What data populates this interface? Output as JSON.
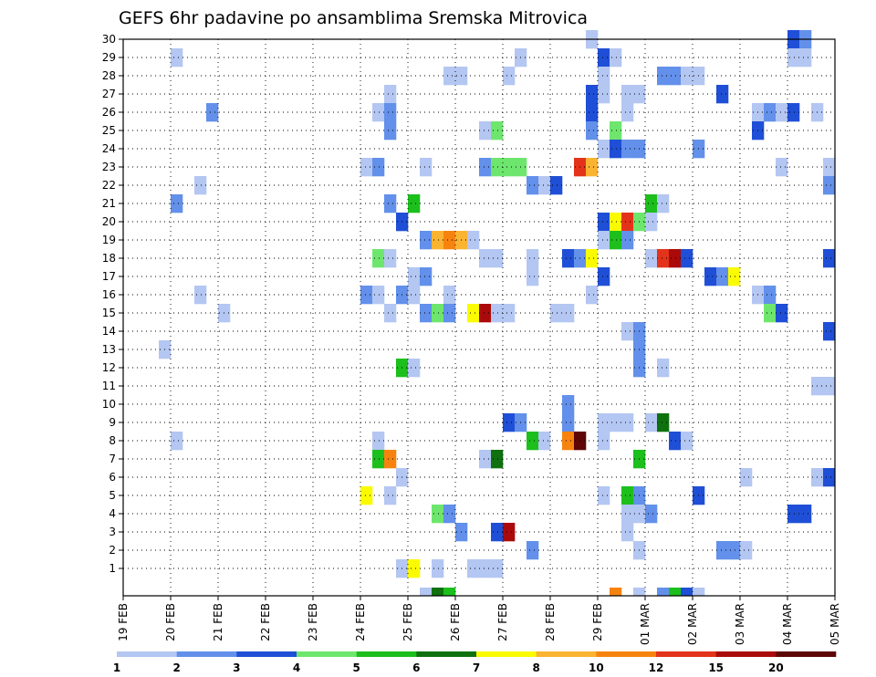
{
  "chart_data": {
    "type": "heatmap",
    "title": "GEFS 6hr padavine po ansamblima Sremska Mitrovica",
    "xlabel": "",
    "ylabel": "",
    "x_tick_labels": [
      "19 FEB",
      "20 FEB",
      "21 FEB",
      "22 FEB",
      "23 FEB",
      "24 FEB",
      "25 FEB",
      "26 FEB",
      "27 FEB",
      "28 FEB",
      "29 FEB",
      "01 MAR",
      "02 MAR",
      "03 MAR",
      "04 MAR",
      "05 MAR"
    ],
    "y_tick_labels": [
      "1",
      "2",
      "3",
      "4",
      "5",
      "6",
      "7",
      "8",
      "9",
      "10",
      "11",
      "12",
      "13",
      "14",
      "15",
      "16",
      "17",
      "18",
      "19",
      "20",
      "21",
      "22",
      "23",
      "24",
      "25",
      "26",
      "27",
      "28",
      "29",
      "30"
    ],
    "x_slots": 60,
    "ylim": [
      0,
      30
    ],
    "grid": true,
    "colorbar": {
      "labels": [
        "1",
        "2",
        "3",
        "4",
        "5",
        "6",
        "7",
        "8",
        "10",
        "12",
        "15",
        "20"
      ],
      "colors": [
        "#b4c6f2",
        "#6290ea",
        "#1f4fd6",
        "#6ee66e",
        "#1cbf1c",
        "#0e710e",
        "#fafa00",
        "#fab432",
        "#f7830f",
        "#e3331a",
        "#aa0a0a",
        "#5e0606"
      ]
    },
    "cells": [
      [
        39,
        30,
        0
      ],
      [
        56,
        30,
        2
      ],
      [
        57,
        30,
        1
      ],
      [
        56,
        29,
        0
      ],
      [
        57,
        29,
        0
      ],
      [
        4,
        29,
        0
      ],
      [
        33,
        29,
        0
      ],
      [
        40,
        29,
        2
      ],
      [
        41,
        29,
        0
      ],
      [
        27,
        28,
        0
      ],
      [
        28,
        28,
        0
      ],
      [
        32,
        28,
        0
      ],
      [
        40,
        28,
        0
      ],
      [
        45,
        28,
        1
      ],
      [
        46,
        28,
        1
      ],
      [
        47,
        28,
        0
      ],
      [
        48,
        28,
        0
      ],
      [
        22,
        27,
        0
      ],
      [
        39,
        27,
        2
      ],
      [
        40,
        27,
        0
      ],
      [
        42,
        27,
        0
      ],
      [
        43,
        27,
        0
      ],
      [
        50,
        27,
        2
      ],
      [
        7,
        26,
        1
      ],
      [
        21,
        26,
        0
      ],
      [
        22,
        26,
        1
      ],
      [
        39,
        26,
        2
      ],
      [
        42,
        26,
        0
      ],
      [
        53,
        26,
        0
      ],
      [
        54,
        26,
        1
      ],
      [
        55,
        26,
        0
      ],
      [
        56,
        26,
        2
      ],
      [
        58,
        26,
        0
      ],
      [
        22,
        25,
        1
      ],
      [
        30,
        25,
        0
      ],
      [
        31,
        25,
        3
      ],
      [
        39,
        25,
        1
      ],
      [
        41,
        25,
        3
      ],
      [
        53,
        25,
        2
      ],
      [
        40,
        24,
        0
      ],
      [
        41,
        24,
        2
      ],
      [
        42,
        24,
        1
      ],
      [
        43,
        24,
        1
      ],
      [
        48,
        24,
        1
      ],
      [
        20,
        23,
        0
      ],
      [
        21,
        23,
        1
      ],
      [
        25,
        23,
        0
      ],
      [
        30,
        23,
        1
      ],
      [
        31,
        23,
        3
      ],
      [
        32,
        23,
        3
      ],
      [
        33,
        23,
        3
      ],
      [
        38,
        23,
        9
      ],
      [
        39,
        23,
        7
      ],
      [
        55,
        23,
        0
      ],
      [
        59,
        23,
        0
      ],
      [
        6,
        22,
        0
      ],
      [
        34,
        22,
        1
      ],
      [
        35,
        22,
        0
      ],
      [
        36,
        22,
        2
      ],
      [
        59,
        22,
        1
      ],
      [
        4,
        21,
        1
      ],
      [
        22,
        21,
        1
      ],
      [
        24,
        21,
        4
      ],
      [
        44,
        21,
        4
      ],
      [
        45,
        21,
        0
      ],
      [
        23,
        20,
        2
      ],
      [
        40,
        20,
        2
      ],
      [
        41,
        20,
        6
      ],
      [
        42,
        20,
        9
      ],
      [
        43,
        20,
        3
      ],
      [
        44,
        20,
        0
      ],
      [
        25,
        19,
        1
      ],
      [
        26,
        19,
        7
      ],
      [
        27,
        19,
        8
      ],
      [
        28,
        19,
        7
      ],
      [
        29,
        19,
        0
      ],
      [
        40,
        19,
        0
      ],
      [
        41,
        19,
        4
      ],
      [
        42,
        19,
        1
      ],
      [
        21,
        18,
        3
      ],
      [
        22,
        18,
        0
      ],
      [
        30,
        18,
        0
      ],
      [
        31,
        18,
        0
      ],
      [
        34,
        18,
        0
      ],
      [
        37,
        18,
        2
      ],
      [
        38,
        18,
        1
      ],
      [
        39,
        18,
        6
      ],
      [
        44,
        18,
        0
      ],
      [
        45,
        18,
        9
      ],
      [
        46,
        18,
        10
      ],
      [
        47,
        18,
        2
      ],
      [
        59,
        18,
        2
      ],
      [
        24,
        17,
        0
      ],
      [
        25,
        17,
        1
      ],
      [
        34,
        17,
        0
      ],
      [
        40,
        17,
        2
      ],
      [
        49,
        17,
        2
      ],
      [
        50,
        17,
        1
      ],
      [
        51,
        17,
        6
      ],
      [
        6,
        16,
        0
      ],
      [
        20,
        16,
        1
      ],
      [
        21,
        16,
        0
      ],
      [
        23,
        16,
        1
      ],
      [
        24,
        16,
        0
      ],
      [
        27,
        16,
        0
      ],
      [
        39,
        16,
        0
      ],
      [
        53,
        16,
        0
      ],
      [
        54,
        16,
        1
      ],
      [
        8,
        15,
        0
      ],
      [
        22,
        15,
        0
      ],
      [
        25,
        15,
        1
      ],
      [
        26,
        15,
        3
      ],
      [
        27,
        15,
        1
      ],
      [
        29,
        15,
        6
      ],
      [
        30,
        15,
        10
      ],
      [
        31,
        15,
        0
      ],
      [
        32,
        15,
        0
      ],
      [
        36,
        15,
        0
      ],
      [
        37,
        15,
        0
      ],
      [
        54,
        15,
        3
      ],
      [
        55,
        15,
        2
      ],
      [
        42,
        14,
        0
      ],
      [
        43,
        14,
        1
      ],
      [
        59,
        14,
        2
      ],
      [
        3,
        13,
        0
      ],
      [
        43,
        13,
        1
      ],
      [
        23,
        12,
        4
      ],
      [
        24,
        12,
        0
      ],
      [
        43,
        12,
        1
      ],
      [
        45,
        12,
        0
      ],
      [
        58,
        11,
        0
      ],
      [
        59,
        11,
        0
      ],
      [
        37,
        10,
        1
      ],
      [
        32,
        9,
        2
      ],
      [
        33,
        9,
        1
      ],
      [
        37,
        9,
        1
      ],
      [
        40,
        9,
        0
      ],
      [
        41,
        9,
        0
      ],
      [
        42,
        9,
        0
      ],
      [
        44,
        9,
        0
      ],
      [
        45,
        9,
        5
      ],
      [
        4,
        8,
        0
      ],
      [
        21,
        8,
        0
      ],
      [
        34,
        8,
        4
      ],
      [
        35,
        8,
        0
      ],
      [
        37,
        8,
        8
      ],
      [
        38,
        8,
        11
      ],
      [
        40,
        8,
        0
      ],
      [
        46,
        8,
        2
      ],
      [
        47,
        8,
        0
      ],
      [
        21,
        7,
        4
      ],
      [
        22,
        7,
        8
      ],
      [
        30,
        7,
        0
      ],
      [
        31,
        7,
        5
      ],
      [
        43,
        7,
        4
      ],
      [
        23,
        6,
        0
      ],
      [
        52,
        6,
        0
      ],
      [
        58,
        6,
        0
      ],
      [
        59,
        6,
        2
      ],
      [
        20,
        5,
        6
      ],
      [
        22,
        5,
        0
      ],
      [
        40,
        5,
        0
      ],
      [
        42,
        5,
        4
      ],
      [
        43,
        5,
        1
      ],
      [
        48,
        5,
        2
      ],
      [
        26,
        4,
        3
      ],
      [
        27,
        4,
        1
      ],
      [
        42,
        4,
        0
      ],
      [
        43,
        4,
        0
      ],
      [
        44,
        4,
        1
      ],
      [
        56,
        4,
        2
      ],
      [
        57,
        4,
        2
      ],
      [
        28,
        3,
        1
      ],
      [
        31,
        3,
        2
      ],
      [
        32,
        3,
        10
      ],
      [
        42,
        3,
        0
      ],
      [
        34,
        2,
        1
      ],
      [
        43,
        2,
        0
      ],
      [
        50,
        2,
        1
      ],
      [
        51,
        2,
        1
      ],
      [
        52,
        2,
        0
      ],
      [
        23,
        1,
        0
      ],
      [
        24,
        1,
        6
      ],
      [
        26,
        1,
        0
      ],
      [
        29,
        1,
        0
      ],
      [
        30,
        1,
        0
      ],
      [
        31,
        1,
        0
      ]
    ],
    "partial_cells": [
      [
        25,
        0,
        0
      ],
      [
        26,
        0,
        5
      ],
      [
        27,
        0,
        4
      ],
      [
        41,
        0,
        8
      ],
      [
        43,
        0,
        0
      ],
      [
        45,
        0,
        1
      ],
      [
        46,
        0,
        4
      ],
      [
        47,
        0,
        2
      ],
      [
        48,
        0,
        0
      ]
    ]
  }
}
